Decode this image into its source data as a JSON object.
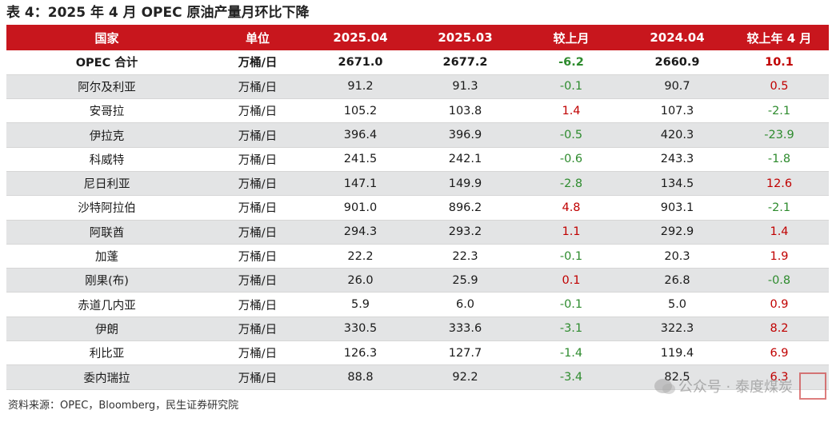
{
  "title": "表 4：2025 年 4 月 OPEC 原油产量月环比下降",
  "headers": [
    "国家",
    "单位",
    "2025.04",
    "2025.03",
    "较上月",
    "2024.04",
    "较上年 4 月"
  ],
  "rows": [
    {
      "country": "OPEC 合计",
      "unit": "万桶/日",
      "apr25": "2671.0",
      "mar25": "2677.2",
      "mom": "-6.2",
      "apr24": "2660.9",
      "yoy": "10.1"
    },
    {
      "country": "阿尔及利亚",
      "unit": "万桶/日",
      "apr25": "91.2",
      "mar25": "91.3",
      "mom": "-0.1",
      "apr24": "90.7",
      "yoy": "0.5"
    },
    {
      "country": "安哥拉",
      "unit": "万桶/日",
      "apr25": "105.2",
      "mar25": "103.8",
      "mom": "1.4",
      "apr24": "107.3",
      "yoy": "-2.1"
    },
    {
      "country": "伊拉克",
      "unit": "万桶/日",
      "apr25": "396.4",
      "mar25": "396.9",
      "mom": "-0.5",
      "apr24": "420.3",
      "yoy": "-23.9"
    },
    {
      "country": "科威特",
      "unit": "万桶/日",
      "apr25": "241.5",
      "mar25": "242.1",
      "mom": "-0.6",
      "apr24": "243.3",
      "yoy": "-1.8"
    },
    {
      "country": "尼日利亚",
      "unit": "万桶/日",
      "apr25": "147.1",
      "mar25": "149.9",
      "mom": "-2.8",
      "apr24": "134.5",
      "yoy": "12.6"
    },
    {
      "country": "沙特阿拉伯",
      "unit": "万桶/日",
      "apr25": "901.0",
      "mar25": "896.2",
      "mom": "4.8",
      "apr24": "903.1",
      "yoy": "-2.1"
    },
    {
      "country": "阿联酋",
      "unit": "万桶/日",
      "apr25": "294.3",
      "mar25": "293.2",
      "mom": "1.1",
      "apr24": "292.9",
      "yoy": "1.4"
    },
    {
      "country": "加蓬",
      "unit": "万桶/日",
      "apr25": "22.2",
      "mar25": "22.3",
      "mom": "-0.1",
      "apr24": "20.3",
      "yoy": "1.9"
    },
    {
      "country": "刚果(布)",
      "unit": "万桶/日",
      "apr25": "26.0",
      "mar25": "25.9",
      "mom": "0.1",
      "apr24": "26.8",
      "yoy": "-0.8"
    },
    {
      "country": "赤道几内亚",
      "unit": "万桶/日",
      "apr25": "5.9",
      "mar25": "6.0",
      "mom": "-0.1",
      "apr24": "5.0",
      "yoy": "0.9"
    },
    {
      "country": "伊朗",
      "unit": "万桶/日",
      "apr25": "330.5",
      "mar25": "333.6",
      "mom": "-3.1",
      "apr24": "322.3",
      "yoy": "8.2"
    },
    {
      "country": "利比亚",
      "unit": "万桶/日",
      "apr25": "126.3",
      "mar25": "127.7",
      "mom": "-1.4",
      "apr24": "119.4",
      "yoy": "6.9"
    },
    {
      "country": "委内瑞拉",
      "unit": "万桶/日",
      "apr25": "88.8",
      "mar25": "92.2",
      "mom": "-3.4",
      "apr24": "82.5",
      "yoy": "6.3"
    }
  ],
  "source": "资料来源：OPEC，Bloomberg，民生证券研究院",
  "watermark": {
    "text": "公众号 · 泰度煤炭",
    "seal_text": "印章"
  },
  "colors": {
    "header_bg": "#c8161d",
    "alt_row_bg": "#e3e4e5",
    "positive": "#c00000",
    "negative": "#2e8b2e"
  }
}
